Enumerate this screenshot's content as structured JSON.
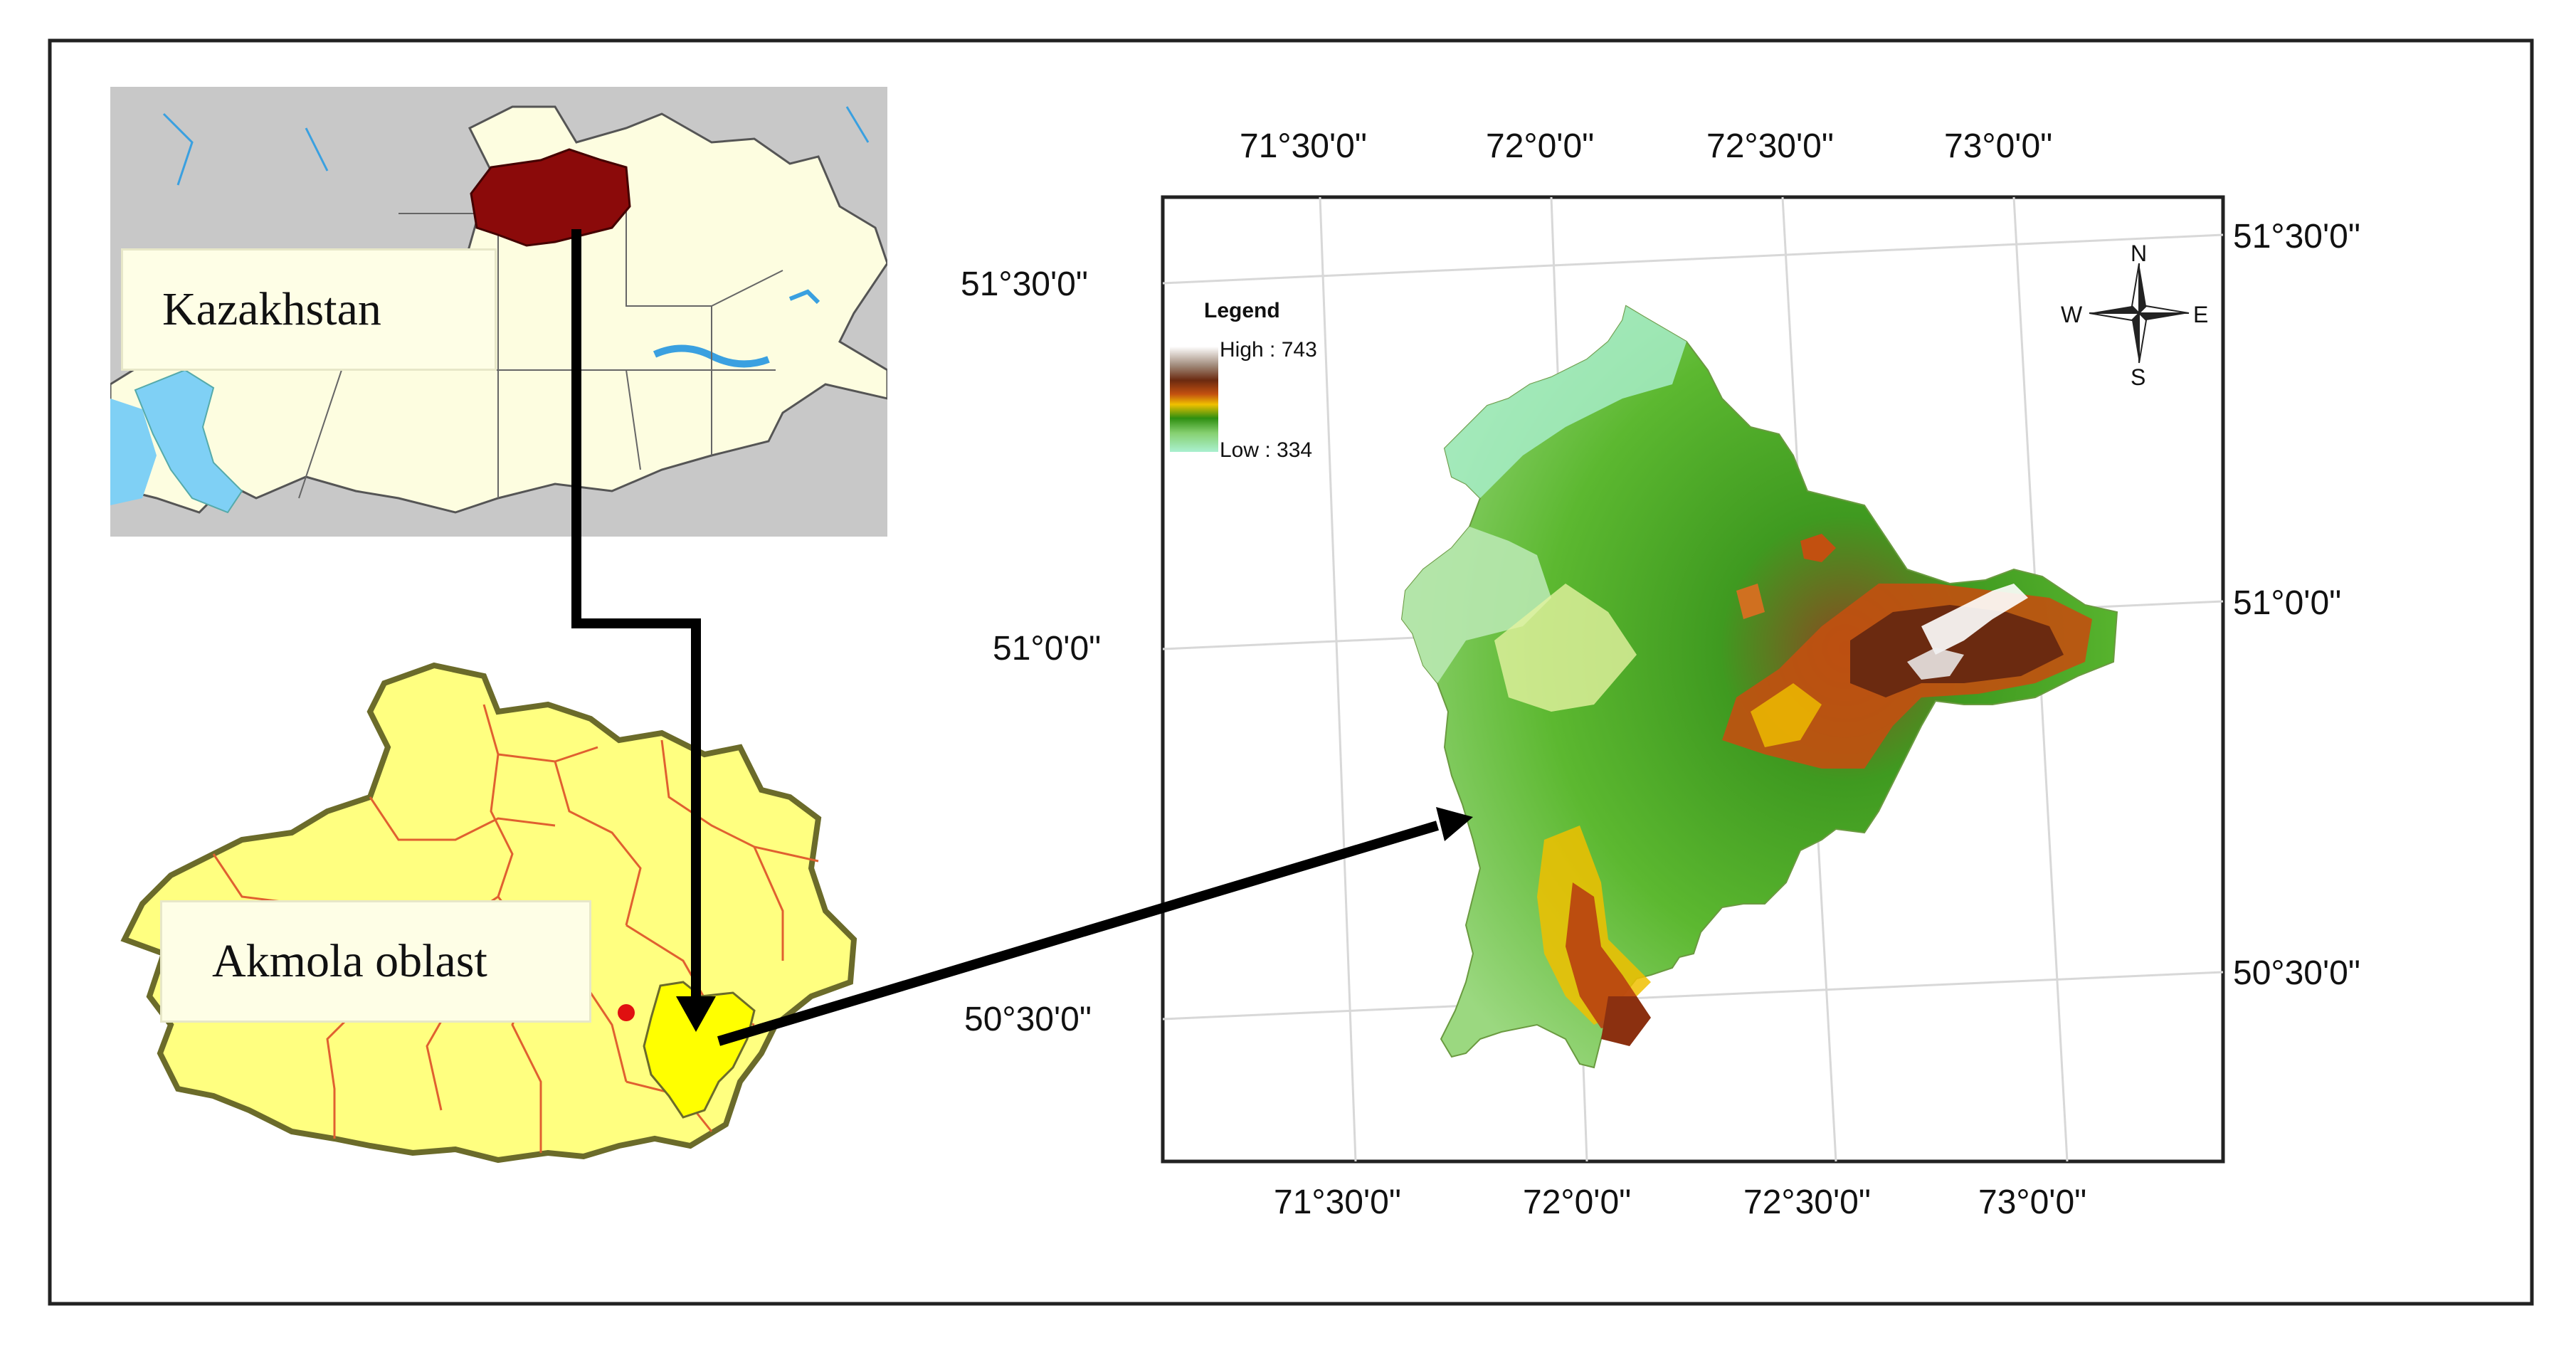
{
  "inset_top": {
    "label": "Kazakhstan"
  },
  "inset_bottom": {
    "label": "Akmola oblast"
  },
  "main_map": {
    "legend": {
      "title": "Legend",
      "high": "High : 743",
      "low": "Low : 334"
    },
    "compass": {
      "n": "N",
      "s": "S",
      "e": "E",
      "w": "W"
    },
    "top_ticks": [
      "71°30'0\"",
      "72°0'0\"",
      "72°30'0\"",
      "73°0'0\""
    ],
    "bottom_ticks": [
      "71°30'0\"",
      "72°0'0\"",
      "72°30'0\"",
      "73°0'0\""
    ],
    "left_ticks": [
      "51°30'0\"",
      "51°0'0\"",
      "50°30'0\""
    ],
    "right_ticks": [
      "51°30'0\"",
      "51°0'0\"",
      "50°30'0\""
    ]
  },
  "colors": {
    "water": "#7fd0f5",
    "land": "#fdfde0",
    "neighbor": "#c8c8c8",
    "akmola": "#8b0a0a",
    "oblast_fill": "#ffff80",
    "district_lines": "#e06030",
    "highlight": "#ffff00",
    "arrow": "#000000"
  }
}
